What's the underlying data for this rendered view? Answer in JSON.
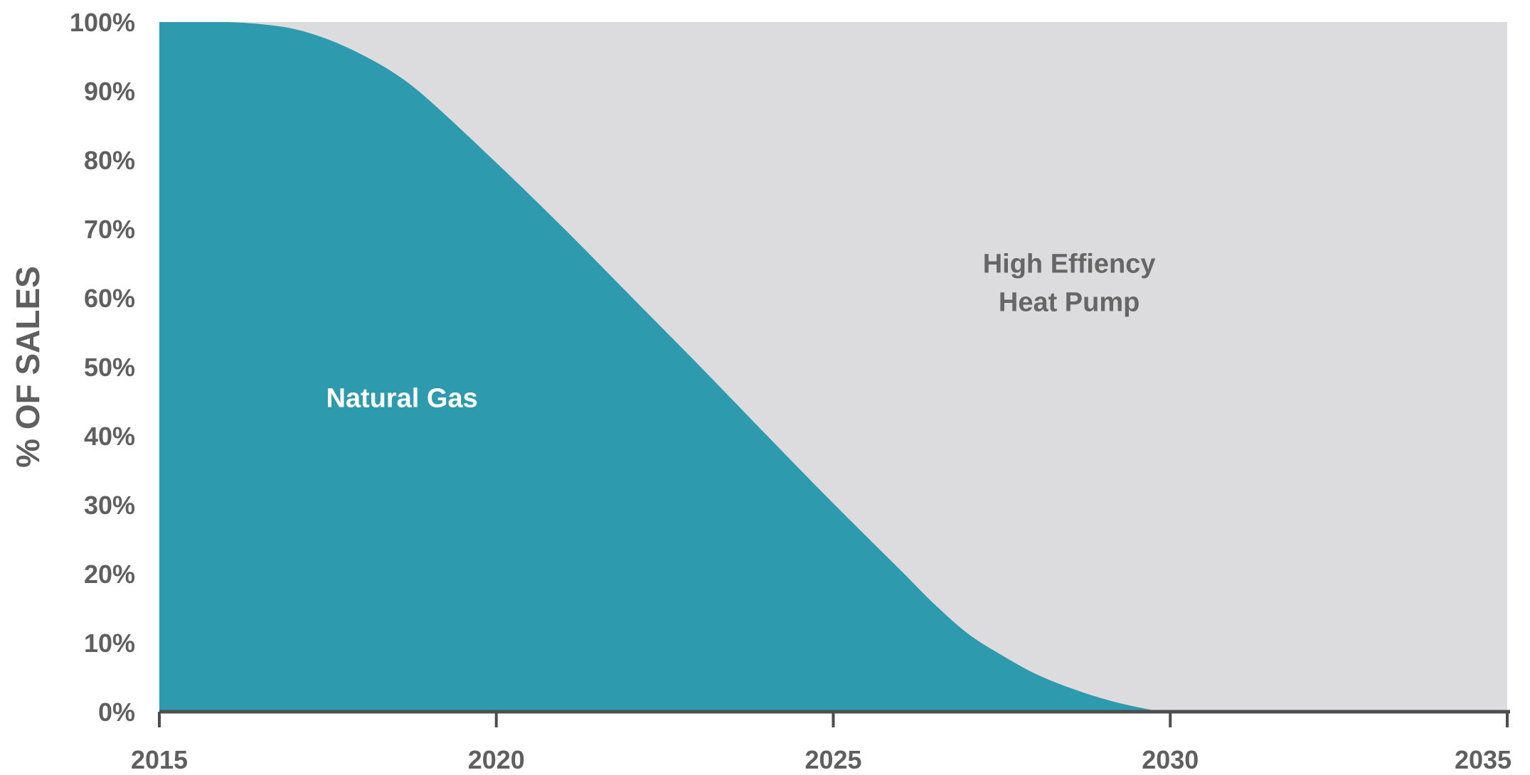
{
  "chart_data": {
    "type": "area",
    "stacked": true,
    "title": "",
    "xlabel": "",
    "ylabel": "% OF SALES",
    "xlim": [
      2015,
      2035
    ],
    "ylim": [
      0,
      100
    ],
    "x_ticks": [
      "2015",
      "2020",
      "2025",
      "2030",
      "2035"
    ],
    "y_ticks": [
      "0%",
      "10%",
      "20%",
      "30%",
      "40%",
      "50%",
      "60%",
      "70%",
      "80%",
      "90%",
      "100%"
    ],
    "x": [
      2015,
      2015.5,
      2016,
      2016.5,
      2017,
      2017.5,
      2018,
      2018.5,
      2019,
      2020,
      2021,
      2022,
      2023,
      2024,
      2025,
      2026,
      2026.5,
      2027,
      2027.5,
      2028,
      2028.5,
      2029,
      2029.5,
      2030,
      2031,
      2035
    ],
    "series": [
      {
        "name": "Natural Gas",
        "color": "#2e9aad",
        "values": [
          100,
          100,
          100,
          99.7,
          99,
          97.5,
          95.3,
          92.5,
          88.7,
          79.6,
          70.1,
          60.2,
          50.3,
          40.2,
          30.2,
          20.5,
          15.6,
          11.3,
          8.2,
          5.5,
          3.5,
          1.9,
          0.7,
          0,
          0,
          0
        ]
      },
      {
        "name": "High Effiency Heat Pump",
        "color": "#dcdcde",
        "values": [
          0,
          0,
          0,
          0.3,
          1,
          2.5,
          4.7,
          7.5,
          11.3,
          20.4,
          29.9,
          39.8,
          49.7,
          59.8,
          69.8,
          79.5,
          84.4,
          88.7,
          91.8,
          94.5,
          96.5,
          98.1,
          99.3,
          100,
          100,
          100
        ]
      }
    ],
    "annotations": [
      {
        "series": "Natural Gas",
        "lines": [
          "Natural Gas"
        ],
        "x": 2018.6,
        "y": 45.5,
        "color": "#ffffff"
      },
      {
        "series": "High Effiency Heat Pump",
        "lines": [
          "High Effiency",
          "Heat Pump"
        ],
        "x": 2028.5,
        "y": 62.2,
        "color": "#666666"
      }
    ],
    "grid": false,
    "legend": "none",
    "colors": {
      "axis": "#4d4d4d",
      "tick_text": "#5f5f5f"
    }
  }
}
